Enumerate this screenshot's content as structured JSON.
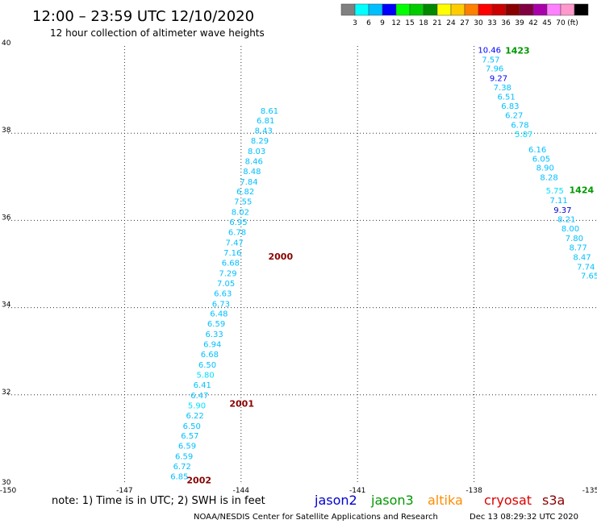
{
  "header": {
    "title": "12:00 – 23:59 UTC 12/10/2020",
    "subtitle": "12 hour collection of altimeter wave heights"
  },
  "colorbar": {
    "colors": [
      "#808080",
      "#00ffff",
      "#00bfff",
      "#0000ff",
      "#00ff00",
      "#00cc00",
      "#008800",
      "#ffff00",
      "#ffcc00",
      "#ff8000",
      "#ff0000",
      "#cc0000",
      "#880000",
      "#800040",
      "#aa00aa",
      "#ff80ff",
      "#ff99cc",
      "#000000"
    ],
    "labels": [
      "3",
      "6",
      "9",
      "12",
      "15",
      "18",
      "21",
      "24",
      "27",
      "30",
      "33",
      "36",
      "39",
      "42",
      "45",
      "70"
    ],
    "unit": "(ft)"
  },
  "footer": {
    "note": "note: 1) Time is in UTC; 2) SWH is in feet",
    "satellites": [
      {
        "name": "jason2",
        "color": "#0000cc"
      },
      {
        "name": "jason3",
        "color": "#009900"
      },
      {
        "name": "altika",
        "color": "#ff8c00"
      },
      {
        "name": "cryosat",
        "color": "#dd0000"
      },
      {
        "name": "s3a",
        "color": "#880000"
      }
    ],
    "credit": "NOAA/NESDIS Center for Satellite Applications and Research",
    "timestamp": "Dec 13 08:29:32 UTC 2020"
  },
  "chart_data": {
    "type": "scatter",
    "title": "12:00 – 23:59 UTC 12/10/2020",
    "subtitle": "12 hour collection of altimeter wave heights",
    "xlim": [
      -150,
      -135
    ],
    "ylim": [
      30,
      40
    ],
    "x_ticks": [
      -150,
      -147,
      -144,
      -141,
      -138,
      -135
    ],
    "x_tick_labels": [
      "-150",
      "-147",
      "-144",
      "-141",
      "-138",
      "-135"
    ],
    "y_ticks": [
      30,
      32,
      34,
      36,
      38,
      40
    ],
    "y_tick_labels": [
      "30",
      "32",
      "34",
      "36",
      "38",
      "40"
    ],
    "grid": true,
    "tracks": [
      {
        "satellite": "s3a",
        "points": [
          {
            "x": -143.5,
            "y": 38.5,
            "v": "8.61",
            "color": "#00bfff"
          },
          {
            "x": -143.6,
            "y": 38.28,
            "v": "6.81",
            "color": "#00bfff"
          },
          {
            "x": -143.65,
            "y": 38.05,
            "v": "8.43",
            "color": "#00bfff"
          },
          {
            "x": -143.75,
            "y": 37.82,
            "v": "8.29",
            "color": "#00bfff"
          },
          {
            "x": -143.83,
            "y": 37.58,
            "v": "8.03",
            "color": "#00bfff"
          },
          {
            "x": -143.9,
            "y": 37.35,
            "v": "8.46",
            "color": "#00bfff"
          },
          {
            "x": -143.95,
            "y": 37.12,
            "v": "8.48",
            "color": "#00bfff"
          },
          {
            "x": -144.03,
            "y": 36.88,
            "v": "7.84",
            "color": "#00bfff"
          },
          {
            "x": -144.12,
            "y": 36.65,
            "v": "6.82",
            "color": "#00bfff"
          },
          {
            "x": -144.18,
            "y": 36.42,
            "v": "7.55",
            "color": "#00bfff"
          },
          {
            "x": -144.25,
            "y": 36.18,
            "v": "8.02",
            "color": "#00bfff"
          },
          {
            "x": -144.3,
            "y": 35.95,
            "v": "6.95",
            "color": "#00bfff"
          },
          {
            "x": -144.33,
            "y": 35.72,
            "v": "6.78",
            "color": "#00bfff"
          },
          {
            "x": -144.4,
            "y": 35.48,
            "v": "7.47",
            "color": "#00bfff"
          },
          {
            "x": -144.45,
            "y": 35.25,
            "v": "7.16",
            "color": "#00bfff"
          },
          {
            "x": -144.5,
            "y": 35.02,
            "v": "6.68",
            "color": "#00bfff"
          },
          {
            "x": -144.57,
            "y": 34.78,
            "v": "7.29",
            "color": "#00bfff"
          },
          {
            "x": -144.62,
            "y": 34.55,
            "v": "7.05",
            "color": "#00bfff"
          },
          {
            "x": -144.7,
            "y": 34.32,
            "v": "6.63",
            "color": "#00bfff"
          },
          {
            "x": -144.75,
            "y": 34.08,
            "v": "6.73",
            "color": "#00bfff"
          },
          {
            "x": -144.8,
            "y": 33.85,
            "v": "6.48",
            "color": "#00bfff"
          },
          {
            "x": -144.87,
            "y": 33.62,
            "v": "6.59",
            "color": "#00bfff"
          },
          {
            "x": -144.92,
            "y": 33.38,
            "v": "6.33",
            "color": "#00bfff"
          },
          {
            "x": -144.97,
            "y": 33.15,
            "v": "6.94",
            "color": "#00bfff"
          },
          {
            "x": -145.04,
            "y": 32.92,
            "v": "6.68",
            "color": "#00bfff"
          },
          {
            "x": -145.1,
            "y": 32.68,
            "v": "6.50",
            "color": "#00bfff"
          },
          {
            "x": -145.15,
            "y": 32.45,
            "v": "5.80",
            "color": "#00e0ff"
          },
          {
            "x": -145.23,
            "y": 32.22,
            "v": "6.41",
            "color": "#00bfff"
          },
          {
            "x": -145.3,
            "y": 31.98,
            "v": "6.47",
            "color": "#00bfff"
          },
          {
            "x": -145.37,
            "y": 31.75,
            "v": "5.90",
            "color": "#00e0ff"
          },
          {
            "x": -145.42,
            "y": 31.52,
            "v": "6.22",
            "color": "#00bfff"
          },
          {
            "x": -145.5,
            "y": 31.28,
            "v": "6.50",
            "color": "#00bfff"
          },
          {
            "x": -145.55,
            "y": 31.05,
            "v": "6.57",
            "color": "#00bfff"
          },
          {
            "x": -145.62,
            "y": 30.82,
            "v": "6.59",
            "color": "#00bfff"
          },
          {
            "x": -145.7,
            "y": 30.58,
            "v": "6.59",
            "color": "#00bfff"
          },
          {
            "x": -145.75,
            "y": 30.35,
            "v": "6.72",
            "color": "#00bfff"
          },
          {
            "x": -145.82,
            "y": 30.12,
            "v": "6.85",
            "color": "#00bfff"
          }
        ],
        "time_labels": [
          {
            "x": -143.3,
            "y": 35.18,
            "t": "2000"
          },
          {
            "x": -144.3,
            "y": 31.8,
            "t": "2001"
          },
          {
            "x": -145.4,
            "y": 30.05,
            "t": "2002"
          }
        ]
      },
      {
        "satellite": "jason3",
        "points": [
          {
            "x": -137.9,
            "y": 39.9,
            "v": "10.46",
            "color": "#0000ff"
          },
          {
            "x": -137.8,
            "y": 39.68,
            "v": "7.57",
            "color": "#00bfff"
          },
          {
            "x": -137.7,
            "y": 39.47,
            "v": "7.96",
            "color": "#00bfff"
          },
          {
            "x": -137.6,
            "y": 39.25,
            "v": "9.27",
            "color": "#0000ff"
          },
          {
            "x": -137.5,
            "y": 39.04,
            "v": "7.38",
            "color": "#00bfff"
          },
          {
            "x": -137.4,
            "y": 38.83,
            "v": "6.51",
            "color": "#00bfff"
          },
          {
            "x": -137.3,
            "y": 38.61,
            "v": "6.83",
            "color": "#00bfff"
          },
          {
            "x": -137.2,
            "y": 38.4,
            "v": "6.27",
            "color": "#00bfff"
          },
          {
            "x": -137.05,
            "y": 38.18,
            "v": "6.78",
            "color": "#00bfff"
          },
          {
            "x": -136.95,
            "y": 37.97,
            "v": "5.87",
            "color": "#00e0ff"
          },
          {
            "x": -136.6,
            "y": 37.62,
            "v": "6.16",
            "color": "#00bfff"
          },
          {
            "x": -136.5,
            "y": 37.4,
            "v": "6.05",
            "color": "#00bfff"
          },
          {
            "x": -136.4,
            "y": 37.2,
            "v": "8.90",
            "color": "#00bfff"
          },
          {
            "x": -136.3,
            "y": 36.98,
            "v": "8.28",
            "color": "#00bfff"
          },
          {
            "x": -136.15,
            "y": 36.67,
            "v": "5.75",
            "color": "#00e0ff"
          },
          {
            "x": -136.05,
            "y": 36.45,
            "v": "7.11",
            "color": "#00bfff"
          },
          {
            "x": -135.95,
            "y": 36.23,
            "v": "9.37",
            "color": "#0000cc"
          },
          {
            "x": -135.85,
            "y": 36.02,
            "v": "8.21",
            "color": "#00bfff"
          },
          {
            "x": -135.75,
            "y": 35.8,
            "v": "8.00",
            "color": "#00bfff"
          },
          {
            "x": -135.65,
            "y": 35.58,
            "v": "7.80",
            "color": "#00bfff"
          },
          {
            "x": -135.55,
            "y": 35.37,
            "v": "8.77",
            "color": "#00bfff"
          },
          {
            "x": -135.45,
            "y": 35.15,
            "v": "8.47",
            "color": "#00bfff"
          },
          {
            "x": -135.35,
            "y": 34.93,
            "v": "7.74",
            "color": "#00bfff"
          },
          {
            "x": -135.25,
            "y": 34.72,
            "v": "7.65",
            "color": "#00bfff"
          }
        ],
        "time_labels": [
          {
            "x": -137.2,
            "y": 39.9,
            "t": "1423"
          },
          {
            "x": -135.55,
            "y": 36.7,
            "t": "1424"
          }
        ]
      }
    ]
  }
}
